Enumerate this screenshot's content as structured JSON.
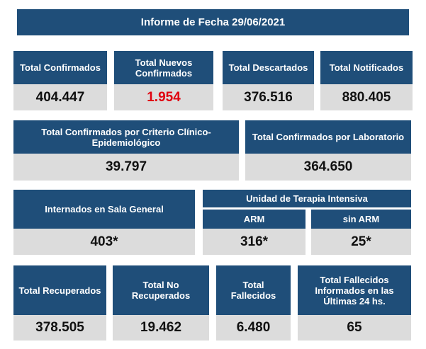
{
  "title": "Informe de Fecha 29/06/2021",
  "row1": [
    {
      "label": "Total Confirmados",
      "value": "404.447"
    },
    {
      "label": "Total Nuevos Confirmados",
      "value": "1.954"
    },
    {
      "label": "Total Descartados",
      "value": "376.516"
    },
    {
      "label": "Total Notificados",
      "value": "880.405"
    }
  ],
  "row2": [
    {
      "label": "Total Confirmados por Criterio Clínico-Epidemiológico",
      "value": "39.797"
    },
    {
      "label": "Total Confirmados por Laboratorio",
      "value": "364.650"
    }
  ],
  "row3": {
    "sala_general": {
      "label": "Internados en Sala General",
      "value": "403*"
    },
    "uti": {
      "label": "Unidad de Terapia Intensiva"
    },
    "arm": {
      "label": "ARM",
      "value": "316*"
    },
    "sin_arm": {
      "label": "sin ARM",
      "value": "25*"
    }
  },
  "row4": [
    {
      "label": "Total Recuperados",
      "value": "378.505"
    },
    {
      "label": "Total No Recuperados",
      "value": "19.462"
    },
    {
      "label": "Total Fallecidos",
      "value": "6.480"
    },
    {
      "label": "Total Fallecidos Informados en las Últimas 24 hs.",
      "value": "65"
    }
  ],
  "colors": {
    "header": "#1f4e79",
    "value_bg": "#dcdcdc",
    "highlight": "#e0000f"
  }
}
